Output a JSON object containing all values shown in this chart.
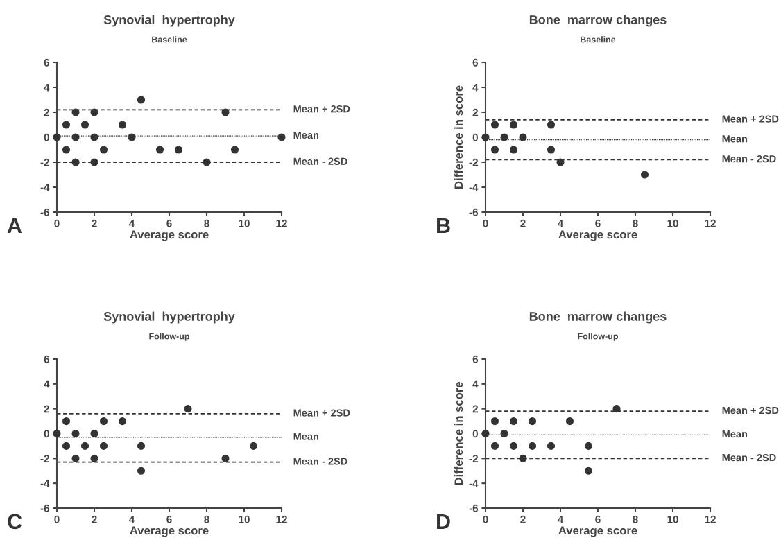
{
  "chart_data": [
    {
      "type": "scatter",
      "title": "Synovial  hypertrophy",
      "subtitle": "Baseline",
      "xlabel": "Average score",
      "color": "#333333",
      "marker": "circle",
      "grid": false,
      "x": [
        0,
        0.5,
        0.5,
        1,
        1,
        1,
        1.5,
        2,
        2,
        2,
        2.5,
        3.5,
        4,
        4.5,
        5.5,
        6.5,
        8,
        9,
        9.5,
        12
      ],
      "values": [
        0,
        1,
        -1,
        2,
        0,
        -2,
        1,
        2,
        0,
        -2,
        -1,
        1,
        0,
        3,
        -1,
        -1,
        -2,
        2,
        -1,
        0
      ],
      "xlim": [
        0,
        12
      ],
      "ylim": [
        -6,
        6
      ],
      "xticks": [
        0,
        2,
        4,
        6,
        8,
        10,
        12
      ],
      "yticks": [
        -6,
        -4,
        -2,
        0,
        2,
        4,
        6
      ],
      "ref_lines": [
        {
          "axis": "y",
          "value": 2.2,
          "label": "Mean + 2SD",
          "line_style": "dashed"
        },
        {
          "axis": "y",
          "value": 0.1,
          "label": "Mean",
          "line_style": "dotted"
        },
        {
          "axis": "y",
          "value": -2.0,
          "label": "Mean - 2SD",
          "line_style": "dashed"
        }
      ],
      "annotations": [
        "A"
      ]
    },
    {
      "type": "scatter",
      "title": "Bone  marrow changes",
      "subtitle": "Baseline",
      "xlabel": "Average score",
      "ylabel": "Difference in score",
      "color": "#333333",
      "marker": "circle",
      "grid": false,
      "x": [
        0,
        0.5,
        0.5,
        1,
        1.5,
        1.5,
        2,
        3.5,
        3.5,
        4,
        8.5
      ],
      "values": [
        0,
        1,
        -1,
        0,
        1,
        -1,
        0,
        1,
        -1,
        -2,
        -3
      ],
      "xlim": [
        0,
        12
      ],
      "ylim": [
        -6,
        6
      ],
      "xticks": [
        0,
        2,
        4,
        6,
        8,
        10,
        12
      ],
      "yticks": [
        -6,
        -4,
        -2,
        0,
        2,
        4,
        6
      ],
      "ref_lines": [
        {
          "axis": "y",
          "value": 1.4,
          "label": "Mean + 2SD",
          "line_style": "dashed"
        },
        {
          "axis": "y",
          "value": -0.2,
          "label": "Mean",
          "line_style": "dotted"
        },
        {
          "axis": "y",
          "value": -1.8,
          "label": "Mean - 2SD",
          "line_style": "dashed"
        }
      ],
      "annotations": [
        "B"
      ]
    },
    {
      "type": "scatter",
      "title": "Synovial  hypertrophy",
      "subtitle": "Follow-up",
      "xlabel": "Average score",
      "color": "#333333",
      "marker": "circle",
      "grid": false,
      "x": [
        0,
        0.5,
        0.5,
        1,
        1,
        1.5,
        2,
        2,
        2.5,
        2.5,
        3.5,
        4.5,
        4.5,
        7,
        9,
        10.5
      ],
      "values": [
        0,
        1,
        -1,
        0,
        -2,
        -1,
        0,
        -2,
        1,
        -1,
        1,
        -1,
        -3,
        2,
        -2,
        -1
      ],
      "xlim": [
        0,
        12
      ],
      "ylim": [
        -6,
        6
      ],
      "xticks": [
        0,
        2,
        4,
        6,
        8,
        10,
        12
      ],
      "yticks": [
        -6,
        -4,
        -2,
        0,
        2,
        4,
        6
      ],
      "ref_lines": [
        {
          "axis": "y",
          "value": 1.6,
          "label": "Mean + 2SD",
          "line_style": "dashed"
        },
        {
          "axis": "y",
          "value": -0.3,
          "label": "Mean",
          "line_style": "dotted"
        },
        {
          "axis": "y",
          "value": -2.3,
          "label": "Mean - 2SD",
          "line_style": "dashed"
        }
      ],
      "annotations": [
        "C"
      ]
    },
    {
      "type": "scatter",
      "title": "Bone  marrow changes",
      "subtitle": "Follow-up",
      "xlabel": "Average score",
      "ylabel": "Difference in score",
      "color": "#333333",
      "marker": "circle",
      "grid": false,
      "x": [
        0,
        0.5,
        0.5,
        1,
        1.5,
        1.5,
        2,
        2.5,
        2.5,
        3.5,
        4.5,
        5.5,
        5.5,
        7
      ],
      "values": [
        0,
        1,
        -1,
        0,
        1,
        -1,
        -2,
        1,
        -1,
        -1,
        1,
        -1,
        -3,
        2
      ],
      "xlim": [
        0,
        12
      ],
      "ylim": [
        -6,
        6
      ],
      "xticks": [
        0,
        2,
        4,
        6,
        8,
        10,
        12
      ],
      "yticks": [
        -6,
        -4,
        -2,
        0,
        2,
        4,
        6
      ],
      "ref_lines": [
        {
          "axis": "y",
          "value": 1.8,
          "label": "Mean + 2SD",
          "line_style": "dashed"
        },
        {
          "axis": "y",
          "value": -0.1,
          "label": "Mean",
          "line_style": "dotted"
        },
        {
          "axis": "y",
          "value": -2.0,
          "label": "Mean - 2SD",
          "line_style": "dashed"
        }
      ],
      "annotations": [
        "D"
      ]
    }
  ]
}
